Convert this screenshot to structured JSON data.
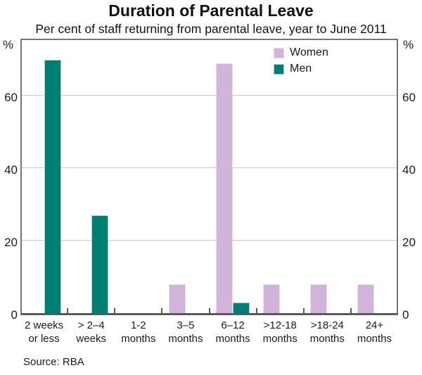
{
  "title": "Duration of Parental Leave",
  "subtitle": "Per cent of staff returning from parental leave, year to June 2011",
  "source": "Source: RBA",
  "axis_unit": "%",
  "colors": {
    "women": "#D2B3D9",
    "women_edge": "#E9DDEE",
    "men": "#007E72",
    "men_edge": "#9FD4CA",
    "grid": "#C9C9C9",
    "frame": "#757575",
    "text": "#1A1A1A"
  },
  "chart_data": {
    "type": "bar",
    "title": "Duration of Parental Leave",
    "subtitle": "Per cent of staff returning from parental leave, year to June 2011",
    "ylabel": "%",
    "ylim": [
      0,
      76
    ],
    "yticks": [
      0,
      20,
      40,
      60
    ],
    "grid": "horizontal",
    "legend_position": "top-right-inside",
    "legend_entries": [
      "Women",
      "Men"
    ],
    "categories": [
      "2 weeks or less",
      "> 2–4 weeks",
      "1-2 months",
      "3–5 months",
      "6–12 months",
      ">12-18 months",
      ">18-24 months",
      "24+ months"
    ],
    "category_label_lines": [
      [
        "2 weeks",
        "or less"
      ],
      [
        "> 2–4",
        "weeks"
      ],
      [
        "1-2",
        "months"
      ],
      [
        "3–5",
        "months"
      ],
      [
        "6–12",
        "months"
      ],
      [
        ">12-18",
        "months"
      ],
      [
        ">18-24",
        "months"
      ],
      [
        "24+",
        "months"
      ]
    ],
    "series": [
      {
        "name": "Women",
        "color": "#D2B3D9",
        "values": [
          0,
          0,
          0,
          8,
          69,
          8,
          8,
          8
        ]
      },
      {
        "name": "Men",
        "color": "#007E72",
        "values": [
          70,
          27,
          0,
          0,
          3,
          0,
          0,
          0
        ]
      }
    ],
    "source": "Source: RBA"
  }
}
